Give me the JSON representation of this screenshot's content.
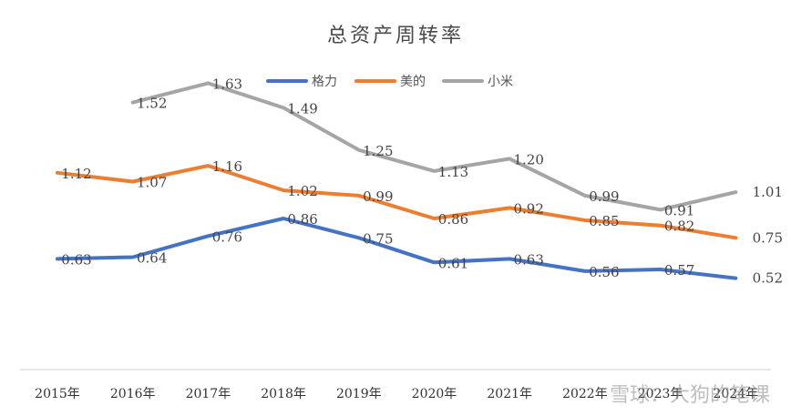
{
  "chart_data": {
    "type": "line",
    "title": "总资产周转率",
    "xlabel": "",
    "ylabel": "",
    "categories": [
      "2015年",
      "2016年",
      "2017年",
      "2018年",
      "2019年",
      "2020年",
      "2021年",
      "2022年",
      "2023年",
      "2024年"
    ],
    "ylim": [
      0,
      2.0
    ],
    "grid": false,
    "legend_position": "top",
    "series": [
      {
        "name": "格力",
        "color": "#4472C4",
        "values": [
          0.63,
          0.64,
          0.76,
          0.86,
          0.75,
          0.61,
          0.63,
          0.56,
          0.57,
          0.52
        ],
        "labels": [
          "0.63",
          "0.64",
          "0.76",
          "0.86",
          "0.75",
          "0.61",
          "0.63",
          "0.56",
          "0.57",
          "0.52"
        ]
      },
      {
        "name": "美的",
        "color": "#ED7D31",
        "values": [
          1.12,
          1.07,
          1.16,
          1.02,
          0.99,
          0.86,
          0.92,
          0.85,
          0.82,
          0.75
        ],
        "labels": [
          "1.12",
          "1.07",
          "1.16",
          "1.02",
          "0.99",
          "0.86",
          "0.92",
          "0.85",
          "0.82",
          "0.75"
        ]
      },
      {
        "name": "小米",
        "color": "#A5A5A5",
        "values": [
          null,
          1.52,
          1.63,
          1.49,
          1.25,
          1.13,
          1.2,
          0.99,
          0.91,
          1.01
        ],
        "labels": [
          "",
          "1.52",
          "1.63",
          "1.49",
          "1.25",
          "1.13",
          "1.20",
          "0.99",
          "0.91",
          "1.01"
        ]
      }
    ]
  },
  "watermark": "雪球：大狗的笔课"
}
